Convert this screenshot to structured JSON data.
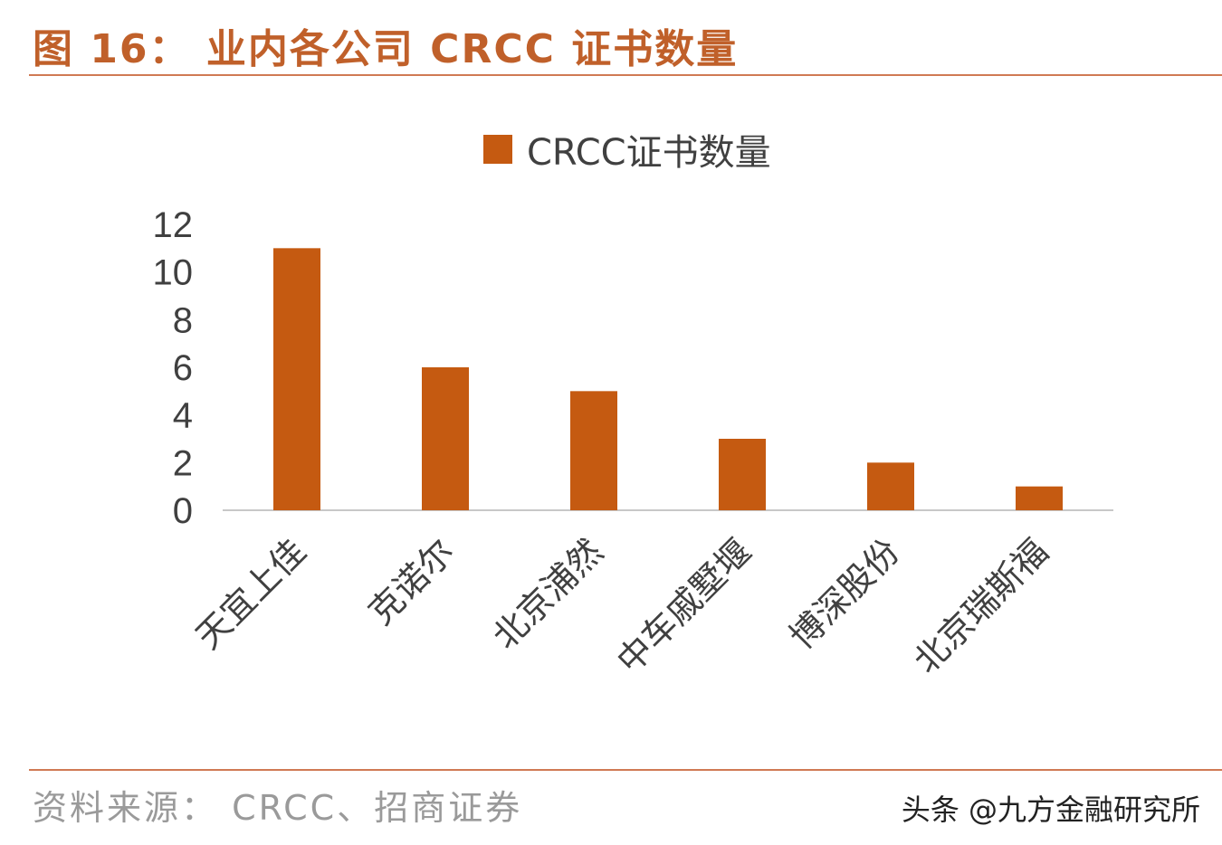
{
  "figure": {
    "title": "图 16： 业内各公司 CRCC 证书数量",
    "source": "资料来源： CRCC、招商证券",
    "watermark": "头条 @九方金融研究所"
  },
  "colors": {
    "bar": "#c55a11",
    "title": "#c0602a",
    "rule": "#d07a54",
    "axis": "#c8c8c8",
    "tick_text": "#404040"
  },
  "chart_data": {
    "type": "bar",
    "categories": [
      "天宜上佳",
      "克诺尔",
      "北京浦然",
      "中车戚墅堰",
      "博深股份",
      "北京瑞斯福"
    ],
    "series": [
      {
        "name": "CRCC证书数量",
        "values": [
          11,
          6,
          5,
          3,
          2,
          1
        ]
      }
    ],
    "yticks": [
      "0",
      "2",
      "4",
      "6",
      "8",
      "10",
      "12"
    ],
    "ylim": [
      0,
      12
    ],
    "grid": false,
    "legend_position": "top-center",
    "xlabel": "",
    "ylabel": ""
  }
}
